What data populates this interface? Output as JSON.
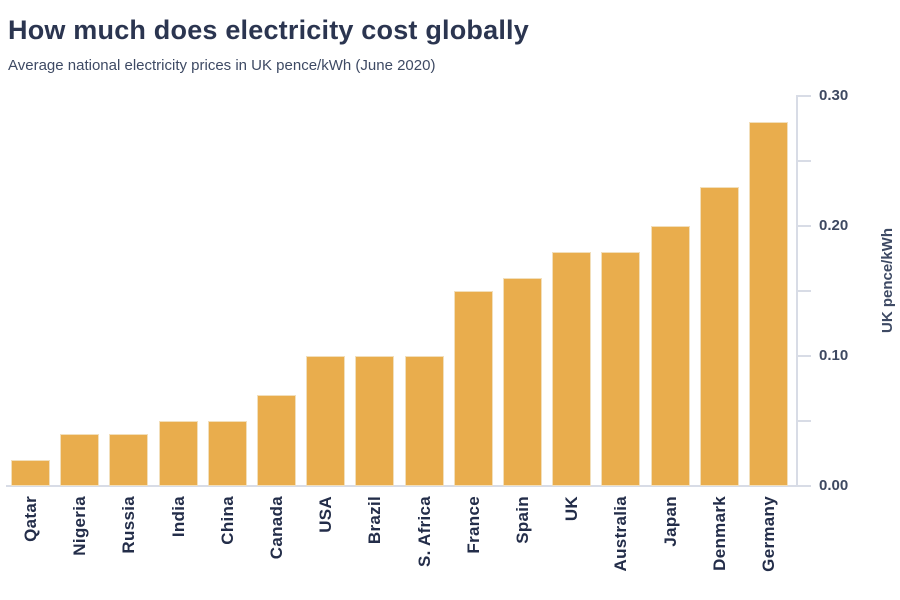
{
  "title": "How much does electricity cost globally",
  "subtitle": "Average national electricity prices in UK pence/kWh (June 2020)",
  "chart_data": {
    "type": "bar",
    "title": "How much does electricity cost globally",
    "subtitle": "Average national electricity prices in UK pence/kWh (June 2020)",
    "categories": [
      "Qatar",
      "Nigeria",
      "Russia",
      "India",
      "China",
      "Canada",
      "USA",
      "Brazil",
      "S. Africa",
      "France",
      "Spain",
      "UK",
      "Australia",
      "Japan",
      "Denmark",
      "Germany"
    ],
    "values": [
      0.02,
      0.04,
      0.04,
      0.05,
      0.05,
      0.07,
      0.1,
      0.1,
      0.1,
      0.15,
      0.16,
      0.18,
      0.18,
      0.2,
      0.23,
      0.28
    ],
    "xlabel": "",
    "ylabel": "UK pence/kWh",
    "ylim": [
      0,
      0.3
    ],
    "yticks_major": [
      {
        "value": 0.0,
        "label": "0.00"
      },
      {
        "value": 0.1,
        "label": "0.10"
      },
      {
        "value": 0.2,
        "label": "0.20"
      },
      {
        "value": 0.3,
        "label": "0.30"
      }
    ],
    "yticks_minor": [
      0.05,
      0.15,
      0.25
    ],
    "y_axis_side": "right",
    "grid": false,
    "legend": "none",
    "bar_color": "#E9AD4D",
    "axis_color": "#D8DCE6",
    "background_color": "#FFFFFF"
  },
  "colors": {
    "title": "#2B3550",
    "subtitle": "#3E4A64",
    "tick_label": "#3E4961",
    "x_label": "#232D49",
    "bar": "#E9AD4D",
    "axis": "#D8DCE6"
  }
}
